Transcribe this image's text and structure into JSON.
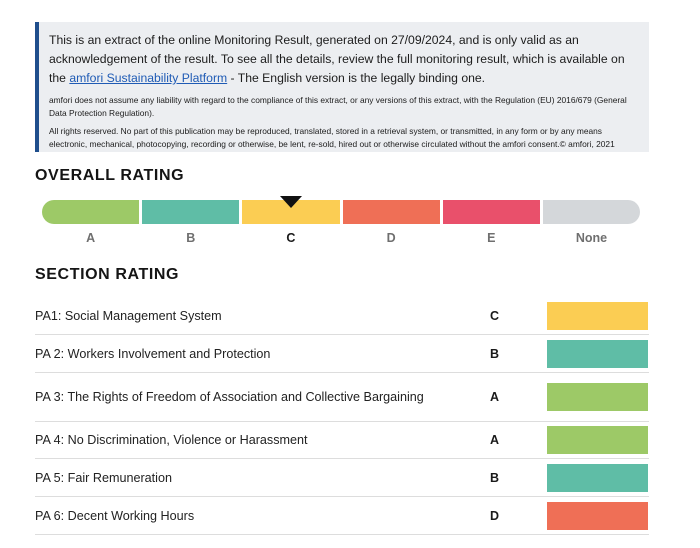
{
  "notice": {
    "text_pre": "This is an extract of the online Monitoring Result, generated on 27/09/2024, and is only valid as an acknowledgement of the result. To see all the details, review the full monitoring result, which is available on the ",
    "link": "amfori Sustainability Platform",
    "text_post": " - The English version is the legally binding one.",
    "disclaimer": "amfori does not assume any liability with regard to the compliance of this extract, or any versions of this extract, with the Regulation (EU) 2016/679 (General Data Protection Regulation).",
    "copyright": "All rights reserved. No part of this publication may be reproduced, translated, stored in a retrieval system, or transmitted, in any form or by any means electronic, mechanical, photocopying, recording or otherwise, be lent, re-sold, hired out or otherwise circulated without the amfori consent.© amfori, 2021"
  },
  "overall": {
    "heading": "OVERALL RATING",
    "current": "C",
    "scale": [
      {
        "label": "A",
        "color": "#9dc967"
      },
      {
        "label": "B",
        "color": "#5fbda6"
      },
      {
        "label": "C",
        "color": "#fbcd53"
      },
      {
        "label": "D",
        "color": "#ef6f56"
      },
      {
        "label": "E",
        "color": "#e9506b"
      },
      {
        "label": "None",
        "color": "#d4d7da"
      }
    ]
  },
  "section": {
    "heading": "SECTION RATING",
    "rows": [
      {
        "name": "PA1: Social Management System",
        "grade": "C",
        "color": "#fbcd53"
      },
      {
        "name": "PA 2: Workers Involvement and Protection",
        "grade": "B",
        "color": "#5fbda6"
      },
      {
        "name": "PA 3: The Rights of Freedom of Association and Collective Bargaining",
        "grade": "A",
        "color": "#9dc967"
      },
      {
        "name": "PA 4: No Discrimination, Violence or Harassment",
        "grade": "A",
        "color": "#9dc967"
      },
      {
        "name": "PA 5: Fair Remuneration",
        "grade": "B",
        "color": "#5fbda6"
      },
      {
        "name": "PA 6: Decent Working Hours",
        "grade": "D",
        "color": "#ef6f56"
      }
    ]
  }
}
